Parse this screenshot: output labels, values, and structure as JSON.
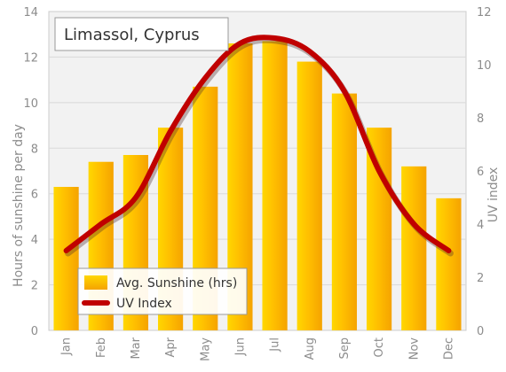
{
  "chart_data": {
    "type": "bar",
    "title": "Limassol, Cyprus",
    "categories": [
      "Jan",
      "Feb",
      "Mar",
      "Apr",
      "May",
      "Jun",
      "Jul",
      "Aug",
      "Sep",
      "Oct",
      "Nov",
      "Dec"
    ],
    "series": [
      {
        "name": "Avg. Sunshine (hrs)",
        "type": "bar",
        "axis": "left",
        "values": [
          6.3,
          7.4,
          7.7,
          8.9,
          10.7,
          12.6,
          12.7,
          11.8,
          10.4,
          8.9,
          7.2,
          5.8
        ],
        "color": "#ffc000"
      },
      {
        "name": "UV Index",
        "type": "line",
        "axis": "right",
        "values": [
          3,
          4,
          5,
          7.5,
          9.5,
          10.8,
          11,
          10.5,
          9,
          6,
          4,
          3
        ],
        "color": "#c00000"
      }
    ],
    "ylabel": "Hours of sunshine per day",
    "ylim": [
      0,
      14
    ],
    "yticks": [
      0,
      2,
      4,
      6,
      8,
      10,
      12,
      14
    ],
    "y2label": "UV index",
    "y2lim": [
      0,
      12
    ],
    "y2ticks": [
      0,
      2,
      4,
      6,
      8,
      10,
      12
    ],
    "grid": true,
    "legend_position": "bottom-left"
  }
}
